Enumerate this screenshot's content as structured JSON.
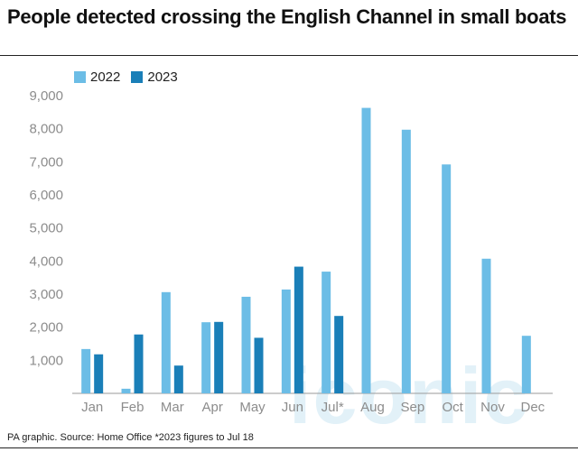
{
  "title": "People detected crossing the English Channel in small boats",
  "footer": "PA graphic. Source: Home Office *2023 figures to Jul 18",
  "watermark": "iconic",
  "colors": {
    "s2022": "#6cbde6",
    "s2023": "#1a7fb8",
    "axis": "#9a9a9a",
    "tick": "#8c8c8c"
  },
  "chart_data": {
    "type": "bar",
    "categories": [
      "Jan",
      "Feb",
      "Mar",
      "Apr",
      "May",
      "Jun",
      "Jul*",
      "Aug",
      "Sep",
      "Oct",
      "Nov",
      "Dec"
    ],
    "series": [
      {
        "name": "2022",
        "values": [
          1340,
          140,
          3060,
          2150,
          2920,
          3140,
          3680,
          8630,
          7970,
          6920,
          4070,
          1740
        ]
      },
      {
        "name": "2023",
        "values": [
          1180,
          1780,
          840,
          2160,
          1680,
          3830,
          2340,
          null,
          null,
          null,
          null,
          null
        ]
      }
    ],
    "yticks": [
      "1,000",
      "2,000",
      "3,000",
      "4,000",
      "5,000",
      "6,000",
      "7,000",
      "8,000",
      "9,000"
    ],
    "ylim": [
      0,
      9000
    ],
    "grid": false,
    "legend_position": "top-left"
  }
}
